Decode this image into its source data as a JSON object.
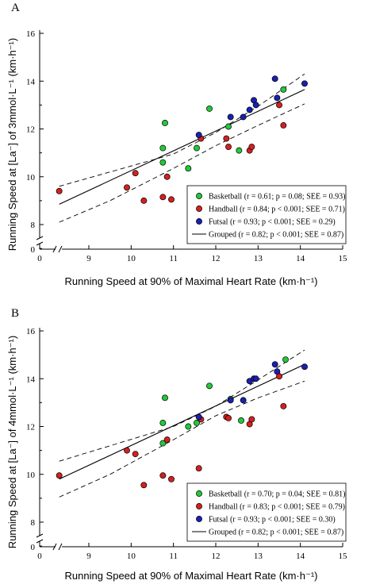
{
  "colors": {
    "Basketball": "#22c93a",
    "Handball": "#d42020",
    "Futsal": "#1a1fb5",
    "line": "#000000"
  },
  "chart_data": [
    {
      "panel": "A",
      "type": "scatter",
      "xlabel": "Running Speed at 90% of Maximal Heart Rate (km·h⁻¹)",
      "ylabel": "Running Speed at [La⁻] of 3mmol·L⁻¹ (km·h⁻¹)",
      "xlim": [
        0,
        15
      ],
      "ylim": [
        7,
        16
      ],
      "xticks": [
        0,
        9,
        10,
        11,
        12,
        13,
        14,
        15
      ],
      "yticks": [
        0,
        8,
        10,
        12,
        14,
        16
      ],
      "axis_break": true,
      "legend_position": "bottom-right",
      "series": [
        {
          "name": "Basketball",
          "legend_label": "Basketball (r = 0.61; p = 0.08; SEE = 0.93)",
          "points": [
            [
              10.75,
              11.2
            ],
            [
              10.75,
              10.6
            ],
            [
              10.8,
              12.25
            ],
            [
              11.35,
              10.35
            ],
            [
              11.55,
              11.2
            ],
            [
              11.85,
              12.85
            ],
            [
              12.3,
              12.1
            ],
            [
              12.55,
              11.1
            ],
            [
              13.6,
              13.65
            ]
          ]
        },
        {
          "name": "Handball",
          "legend_label": "Handball (r = 0.84; p < 0.001; SEE = 0.71)",
          "points": [
            [
              8.3,
              9.4
            ],
            [
              9.9,
              9.55
            ],
            [
              10.1,
              10.15
            ],
            [
              10.3,
              9.0
            ],
            [
              10.75,
              9.15
            ],
            [
              10.85,
              10.0
            ],
            [
              10.95,
              9.05
            ],
            [
              11.6,
              9.45
            ],
            [
              11.65,
              11.6
            ],
            [
              12.25,
              11.6
            ],
            [
              12.3,
              11.25
            ],
            [
              12.8,
              11.1
            ],
            [
              12.85,
              11.25
            ],
            [
              13.5,
              13.0
            ],
            [
              13.6,
              12.15
            ]
          ]
        },
        {
          "name": "Futsal",
          "legend_label": "Futsal (r = 0.93; p < 0.001; SEE = 0.29)",
          "points": [
            [
              11.6,
              11.75
            ],
            [
              12.35,
              12.5
            ],
            [
              12.65,
              12.5
            ],
            [
              12.8,
              12.8
            ],
            [
              12.9,
              13.2
            ],
            [
              12.95,
              13.0
            ],
            [
              13.4,
              14.1
            ],
            [
              13.45,
              13.3
            ],
            [
              14.1,
              13.9
            ]
          ]
        }
      ],
      "grouped": {
        "legend_label": "Grouped (r = 0.82; p < 0.001; SEE = 0.87)",
        "line": [
          [
            8.3,
            8.85
          ],
          [
            14.1,
            13.65
          ]
        ],
        "ci_upper": [
          [
            8.3,
            9.6
          ],
          [
            11.0,
            10.95
          ],
          [
            12.0,
            11.85
          ],
          [
            13.0,
            12.95
          ],
          [
            14.1,
            14.3
          ]
        ],
        "ci_lower": [
          [
            8.3,
            8.1
          ],
          [
            9.5,
            9.0
          ],
          [
            11.0,
            10.35
          ],
          [
            12.0,
            11.3
          ],
          [
            13.0,
            12.15
          ],
          [
            14.1,
            13.05
          ]
        ]
      }
    },
    {
      "panel": "B",
      "type": "scatter",
      "xlabel": "Running Speed at 90% of Maximal Heart Rate (km·h⁻¹)",
      "ylabel": "Running Speed at [La⁻] of 4mmol·L⁻¹ (km·h⁻¹)",
      "xlim": [
        0,
        15
      ],
      "ylim": [
        7,
        16
      ],
      "xticks": [
        0,
        9,
        10,
        11,
        12,
        13,
        14,
        15
      ],
      "yticks": [
        0,
        8,
        10,
        12,
        14,
        16
      ],
      "axis_break": true,
      "legend_position": "bottom-right",
      "series": [
        {
          "name": "Basketball",
          "legend_label": "Basketball (r = 0.70; p = 0.04; SEE = 0.81)",
          "points": [
            [
              10.75,
              12.15
            ],
            [
              10.75,
              11.3
            ],
            [
              10.8,
              13.2
            ],
            [
              11.35,
              12.0
            ],
            [
              11.55,
              12.15
            ],
            [
              11.85,
              13.7
            ],
            [
              12.35,
              13.15
            ],
            [
              12.6,
              12.25
            ],
            [
              13.65,
              14.8
            ]
          ]
        },
        {
          "name": "Handball",
          "legend_label": "Handball (r = 0.83; p < 0.001; SEE = 0.79)",
          "points": [
            [
              8.3,
              9.95
            ],
            [
              9.9,
              11.0
            ],
            [
              10.1,
              10.85
            ],
            [
              10.3,
              9.55
            ],
            [
              10.75,
              9.95
            ],
            [
              10.85,
              11.45
            ],
            [
              10.95,
              9.8
            ],
            [
              11.6,
              10.25
            ],
            [
              11.65,
              12.3
            ],
            [
              12.25,
              12.4
            ],
            [
              12.3,
              12.35
            ],
            [
              12.8,
              12.1
            ],
            [
              12.85,
              12.3
            ],
            [
              13.5,
              14.1
            ],
            [
              13.6,
              12.85
            ]
          ]
        },
        {
          "name": "Futsal",
          "legend_label": "Futsal (r = 0.93; p < 0.001; SEE = 0.30)",
          "points": [
            [
              11.6,
              12.4
            ],
            [
              12.35,
              13.1
            ],
            [
              12.65,
              13.1
            ],
            [
              12.8,
              13.9
            ],
            [
              12.9,
              14.0
            ],
            [
              12.95,
              14.0
            ],
            [
              13.4,
              14.6
            ],
            [
              13.45,
              14.3
            ],
            [
              14.1,
              14.5
            ]
          ]
        }
      ],
      "grouped": {
        "legend_label": "Grouped (r = 0.82; p < 0.001; SEE = 0.87)",
        "line": [
          [
            8.3,
            9.8
          ],
          [
            14.1,
            14.6
          ]
        ],
        "ci_upper": [
          [
            8.3,
            10.55
          ],
          [
            11.0,
            12.0
          ],
          [
            12.0,
            12.85
          ],
          [
            13.0,
            13.95
          ],
          [
            14.1,
            15.2
          ]
        ],
        "ci_lower": [
          [
            8.3,
            9.05
          ],
          [
            9.5,
            10.0
          ],
          [
            11.0,
            11.45
          ],
          [
            12.0,
            12.45
          ],
          [
            13.0,
            13.2
          ],
          [
            14.1,
            13.9
          ]
        ]
      }
    }
  ]
}
